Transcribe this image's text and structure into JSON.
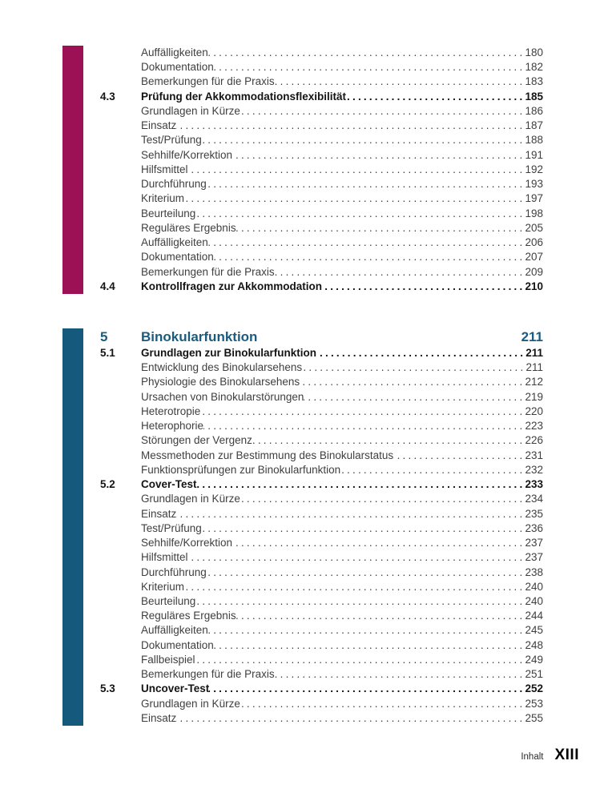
{
  "colors": {
    "section4_bar": "#9C1056",
    "section5_bar": "#155A7C",
    "section5_heading": "#1A5C80"
  },
  "sections": [
    {
      "name": "section-4",
      "bar_color": "#9C1056",
      "heading": null,
      "entries": [
        {
          "number": "",
          "title": "Auffälligkeiten",
          "page": "180",
          "bold": false
        },
        {
          "number": "",
          "title": "Dokumentation",
          "page": "182",
          "bold": false
        },
        {
          "number": "",
          "title": "Bemerkungen für die Praxis",
          "page": "183",
          "bold": false
        },
        {
          "number": "4.3",
          "title": "Prüfung der Akkommodationsflexibilität",
          "page": "185",
          "bold": true
        },
        {
          "number": "",
          "title": "Grundlagen in Kürze",
          "page": "186",
          "bold": false
        },
        {
          "number": "",
          "title": "Einsatz",
          "page": "187",
          "bold": false
        },
        {
          "number": "",
          "title": "Test/Prüfung",
          "page": "188",
          "bold": false
        },
        {
          "number": "",
          "title": "Sehhilfe/Korrektion",
          "page": "191",
          "bold": false
        },
        {
          "number": "",
          "title": "Hilfsmittel",
          "page": "192",
          "bold": false
        },
        {
          "number": "",
          "title": "Durchführung",
          "page": "193",
          "bold": false
        },
        {
          "number": "",
          "title": "Kriterium",
          "page": "197",
          "bold": false
        },
        {
          "number": "",
          "title": "Beurteilung",
          "page": "198",
          "bold": false
        },
        {
          "number": "",
          "title": "Reguläres Ergebnis",
          "page": "205",
          "bold": false
        },
        {
          "number": "",
          "title": "Auffälligkeiten",
          "page": "206",
          "bold": false
        },
        {
          "number": "",
          "title": "Dokumentation",
          "page": "207",
          "bold": false
        },
        {
          "number": "",
          "title": "Bemerkungen für die Praxis",
          "page": "209",
          "bold": false
        },
        {
          "number": "4.4",
          "title": "Kontrollfragen zur Akkommodation",
          "page": "210",
          "bold": true
        }
      ]
    },
    {
      "name": "section-5",
      "bar_color": "#155A7C",
      "heading": {
        "number": "5",
        "title": "Binokularfunktion",
        "page": "211",
        "color": "#1A5C80"
      },
      "entries": [
        {
          "number": "5.1",
          "title": "Grundlagen zur Binokularfunktion",
          "page": "211",
          "bold": true
        },
        {
          "number": "",
          "title": "Entwicklung des Binokularsehens",
          "page": "211",
          "bold": false
        },
        {
          "number": "",
          "title": "Physiologie des Binokularsehens",
          "page": "212",
          "bold": false
        },
        {
          "number": "",
          "title": "Ursachen von Binokularstörungen",
          "page": "219",
          "bold": false
        },
        {
          "number": "",
          "title": "Heterotropie",
          "page": "220",
          "bold": false
        },
        {
          "number": "",
          "title": "Heterophorie",
          "page": "223",
          "bold": false
        },
        {
          "number": "",
          "title": "Störungen der Vergenz",
          "page": "226",
          "bold": false
        },
        {
          "number": "",
          "title": "Messmethoden zur Bestimmung des Binokularstatus",
          "page": "231",
          "bold": false
        },
        {
          "number": "",
          "title": "Funktionsprüfungen zur Binokularfunktion",
          "page": "232",
          "bold": false
        },
        {
          "number": "5.2",
          "title": "Cover-Test",
          "page": "233",
          "bold": true
        },
        {
          "number": "",
          "title": "Grundlagen in Kürze",
          "page": "234",
          "bold": false
        },
        {
          "number": "",
          "title": "Einsatz",
          "page": "235",
          "bold": false
        },
        {
          "number": "",
          "title": "Test/Prüfung",
          "page": "236",
          "bold": false
        },
        {
          "number": "",
          "title": "Sehhilfe/Korrektion",
          "page": "237",
          "bold": false
        },
        {
          "number": "",
          "title": "Hilfsmittel",
          "page": "237",
          "bold": false
        },
        {
          "number": "",
          "title": "Durchführung",
          "page": "238",
          "bold": false
        },
        {
          "number": "",
          "title": "Kriterium",
          "page": "240",
          "bold": false
        },
        {
          "number": "",
          "title": "Beurteilung",
          "page": "240",
          "bold": false
        },
        {
          "number": "",
          "title": "Reguläres Ergebnis",
          "page": "244",
          "bold": false
        },
        {
          "number": "",
          "title": "Auffälligkeiten",
          "page": "245",
          "bold": false
        },
        {
          "number": "",
          "title": "Dokumentation",
          "page": "248",
          "bold": false
        },
        {
          "number": "",
          "title": "Fallbeispiel",
          "page": "249",
          "bold": false
        },
        {
          "number": "",
          "title": "Bemerkungen für die Praxis",
          "page": "251",
          "bold": false
        },
        {
          "number": "5.3",
          "title": "Uncover-Test",
          "page": "252",
          "bold": true
        },
        {
          "number": "",
          "title": "Grundlagen in Kürze",
          "page": "253",
          "bold": false
        },
        {
          "number": "",
          "title": "Einsatz",
          "page": "255",
          "bold": false
        }
      ]
    }
  ],
  "footer": {
    "label": "Inhalt",
    "page": "XIII"
  }
}
